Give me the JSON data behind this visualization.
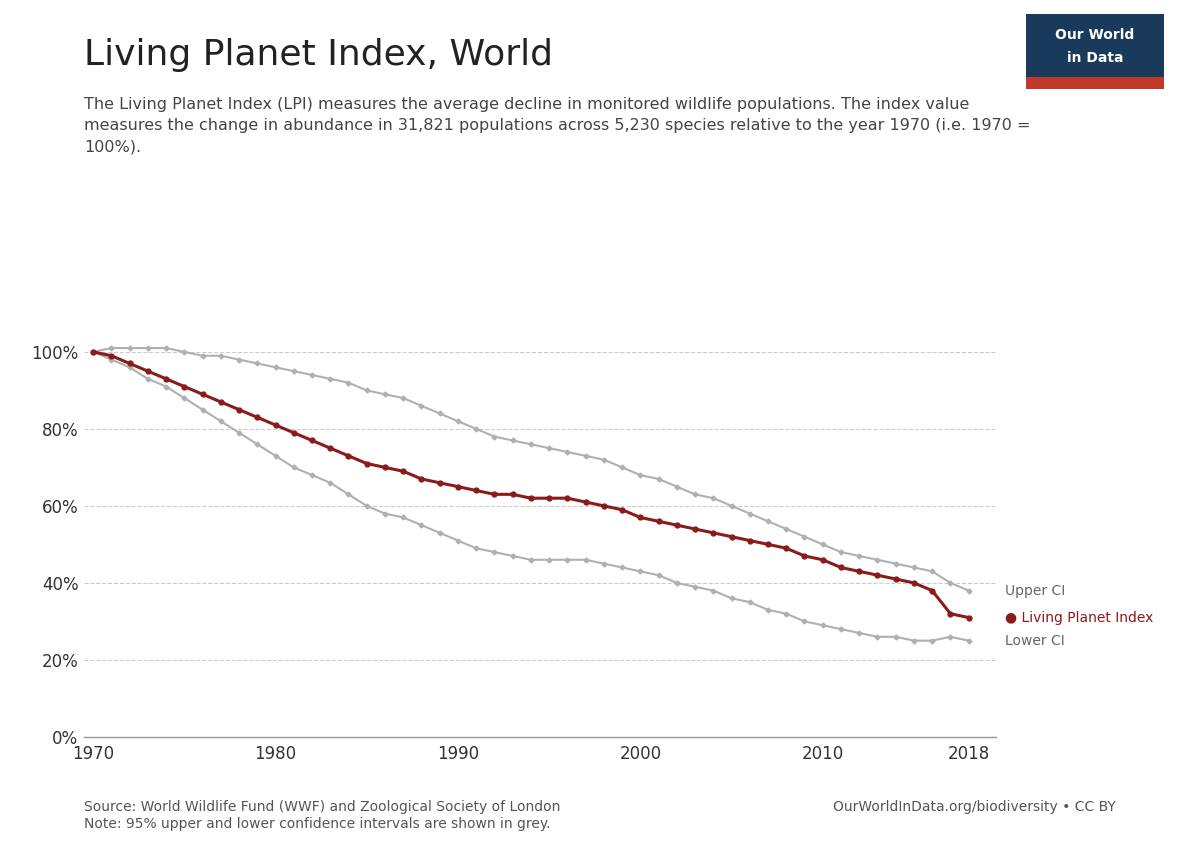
{
  "title": "Living Planet Index, World",
  "subtitle": "The Living Planet Index (LPI) measures the average decline in monitored wildlife populations. The index value\nmeasures the change in abundance in 31,821 populations across 5,230 species relative to the year 1970 (i.e. 1970 =\n100%).",
  "source_left": "Source: World Wildlife Fund (WWF) and Zoological Society of London\nNote: 95% upper and lower confidence intervals are shown in grey.",
  "source_right": "OurWorldInData.org/biodiversity • CC BY",
  "title_fontsize": 26,
  "subtitle_fontsize": 11.5,
  "source_fontsize": 10,
  "lpi_color": "#8B1A1A",
  "ci_color": "#B0B0B0",
  "bg_color": "#FFFFFF",
  "grid_color": "#CCCCCC",
  "years": [
    1970,
    1971,
    1972,
    1973,
    1974,
    1975,
    1976,
    1977,
    1978,
    1979,
    1980,
    1981,
    1982,
    1983,
    1984,
    1985,
    1986,
    1987,
    1988,
    1989,
    1990,
    1991,
    1992,
    1993,
    1994,
    1995,
    1996,
    1997,
    1998,
    1999,
    2000,
    2001,
    2002,
    2003,
    2004,
    2005,
    2006,
    2007,
    2008,
    2009,
    2010,
    2011,
    2012,
    2013,
    2014,
    2015,
    2016,
    2017,
    2018
  ],
  "lpi": [
    100,
    99,
    97,
    95,
    93,
    91,
    89,
    87,
    85,
    83,
    81,
    79,
    77,
    75,
    73,
    71,
    70,
    69,
    67,
    66,
    65,
    64,
    63,
    63,
    62,
    62,
    62,
    61,
    60,
    59,
    57,
    56,
    55,
    54,
    53,
    52,
    51,
    50,
    49,
    47,
    46,
    44,
    43,
    42,
    41,
    40,
    38,
    32,
    31
  ],
  "upper_ci": [
    100,
    101,
    101,
    101,
    101,
    100,
    99,
    99,
    98,
    97,
    96,
    95,
    94,
    93,
    92,
    90,
    89,
    88,
    86,
    84,
    82,
    80,
    78,
    77,
    76,
    75,
    74,
    73,
    72,
    70,
    68,
    67,
    65,
    63,
    62,
    60,
    58,
    56,
    54,
    52,
    50,
    48,
    47,
    46,
    45,
    44,
    43,
    40,
    38
  ],
  "lower_ci": [
    100,
    98,
    96,
    93,
    91,
    88,
    85,
    82,
    79,
    76,
    73,
    70,
    68,
    66,
    63,
    60,
    58,
    57,
    55,
    53,
    51,
    49,
    48,
    47,
    46,
    46,
    46,
    46,
    45,
    44,
    43,
    42,
    40,
    39,
    38,
    36,
    35,
    33,
    32,
    30,
    29,
    28,
    27,
    26,
    26,
    25,
    25,
    26,
    25
  ],
  "xlim": [
    1969.5,
    2019.5
  ],
  "ylim": [
    0,
    110
  ],
  "yticks": [
    0,
    20,
    40,
    60,
    80,
    100
  ],
  "xticks": [
    1970,
    1980,
    1990,
    2000,
    2010,
    2018
  ],
  "owid_bg": "#1a3a5c",
  "owid_red": "#c0392b",
  "owid_text": "#FFFFFF"
}
